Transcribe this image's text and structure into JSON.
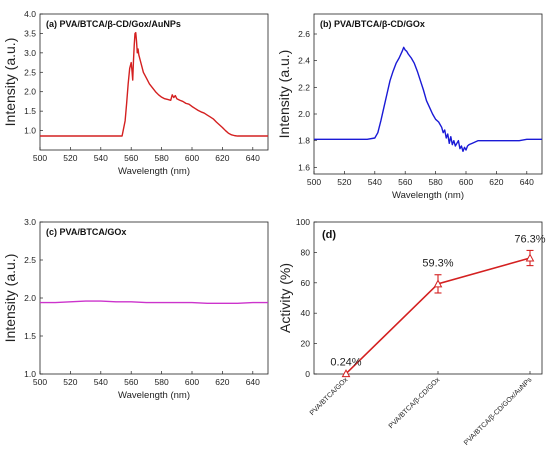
{
  "chart_data": [
    {
      "type": "line",
      "title": "(a) PVA/BTCA/β-CD/Gox/AuNPs",
      "xlabel": "Wavelength (nm)",
      "ylabel": "Intensity (a.u.)",
      "xlim": [
        500,
        650
      ],
      "ylim": [
        0.5,
        4.0
      ],
      "xticks": [
        "500",
        "520",
        "540",
        "560",
        "580",
        "600",
        "620",
        "640"
      ],
      "yticks": [
        "1.0",
        "1.5",
        "2.0",
        "2.5",
        "3.0",
        "3.5",
        "4.0"
      ],
      "color": "#d42020",
      "series": [
        {
          "x": [
            500,
            505,
            510,
            515,
            520,
            525,
            530,
            535,
            540,
            545,
            550,
            552,
            554,
            556,
            557,
            558,
            559,
            560,
            560.5,
            561,
            561.5,
            562,
            562.5,
            563,
            563.5,
            564,
            564.5,
            565,
            566,
            567,
            568,
            570,
            572,
            574,
            576,
            578,
            580,
            582,
            584,
            586,
            587,
            588,
            589,
            590,
            592,
            594,
            596,
            598,
            600,
            602,
            604,
            606,
            608,
            610,
            612,
            614,
            616,
            618,
            620,
            622,
            624,
            626,
            628,
            630,
            632,
            634,
            636,
            638,
            640,
            642,
            644,
            646,
            648,
            650
          ],
          "y": [
            0.86,
            0.86,
            0.86,
            0.86,
            0.86,
            0.86,
            0.86,
            0.86,
            0.86,
            0.86,
            0.86,
            0.86,
            0.86,
            1.25,
            1.7,
            2.2,
            2.6,
            2.75,
            2.55,
            2.3,
            2.8,
            3.2,
            3.5,
            3.52,
            3.3,
            3.0,
            3.1,
            2.95,
            2.8,
            2.65,
            2.5,
            2.35,
            2.2,
            2.1,
            2.0,
            1.92,
            1.86,
            1.82,
            1.8,
            1.78,
            1.92,
            1.85,
            1.9,
            1.82,
            1.78,
            1.75,
            1.7,
            1.68,
            1.62,
            1.57,
            1.52,
            1.48,
            1.45,
            1.4,
            1.35,
            1.3,
            1.22,
            1.15,
            1.08,
            1.0,
            0.93,
            0.89,
            0.87,
            0.86,
            0.86,
            0.86,
            0.86,
            0.86,
            0.86,
            0.86,
            0.86,
            0.86,
            0.86,
            0.86
          ]
        }
      ]
    },
    {
      "type": "line",
      "title": "(b) PVA/BTCA/β-CD/GOx",
      "xlabel": "Wavelength (nm)",
      "ylabel": "Intensity (a.u.)",
      "xlim": [
        500,
        650
      ],
      "ylim": [
        1.55,
        2.75
      ],
      "xticks": [
        "500",
        "520",
        "540",
        "560",
        "580",
        "600",
        "620",
        "640"
      ],
      "yticks": [
        "1.6",
        "1.8",
        "2.0",
        "2.2",
        "2.4",
        "2.6"
      ],
      "color": "#1a1ad6",
      "series": [
        {
          "x": [
            500,
            505,
            510,
            515,
            520,
            525,
            530,
            535,
            540,
            542,
            544,
            546,
            548,
            550,
            552,
            554,
            556,
            558,
            559,
            560,
            561,
            562,
            564,
            566,
            568,
            570,
            572,
            574,
            576,
            578,
            580,
            582,
            584,
            585,
            586,
            587,
            588,
            589,
            590,
            591,
            592,
            593,
            594,
            595,
            596,
            597,
            598,
            599,
            600,
            601,
            602,
            604,
            606,
            608,
            610,
            615,
            620,
            625,
            630,
            635,
            640,
            645,
            650
          ],
          "y": [
            1.81,
            1.81,
            1.81,
            1.81,
            1.81,
            1.81,
            1.81,
            1.81,
            1.82,
            1.86,
            1.95,
            2.05,
            2.15,
            2.25,
            2.32,
            2.38,
            2.42,
            2.47,
            2.5,
            2.48,
            2.47,
            2.45,
            2.42,
            2.38,
            2.32,
            2.25,
            2.18,
            2.1,
            2.05,
            2.0,
            1.96,
            1.94,
            1.9,
            1.86,
            1.88,
            1.82,
            1.85,
            1.78,
            1.83,
            1.77,
            1.8,
            1.76,
            1.78,
            1.8,
            1.74,
            1.76,
            1.72,
            1.75,
            1.73,
            1.76,
            1.77,
            1.78,
            1.79,
            1.8,
            1.8,
            1.8,
            1.8,
            1.8,
            1.8,
            1.8,
            1.81,
            1.81,
            1.81
          ]
        }
      ]
    },
    {
      "type": "line",
      "title": "(c) PVA/BTCA/GOx",
      "xlabel": "Wavelength (nm)",
      "ylabel": "Intensity (a.u.)",
      "xlim": [
        500,
        650
      ],
      "ylim": [
        1.0,
        3.0
      ],
      "xticks": [
        "500",
        "520",
        "540",
        "560",
        "580",
        "600",
        "620",
        "640"
      ],
      "yticks": [
        "1.0",
        "1.5",
        "2.0",
        "2.5",
        "3.0"
      ],
      "color": "#cc33cc",
      "series": [
        {
          "x": [
            500,
            510,
            520,
            530,
            540,
            550,
            560,
            570,
            580,
            590,
            600,
            610,
            620,
            630,
            640,
            650
          ],
          "y": [
            1.94,
            1.94,
            1.95,
            1.96,
            1.96,
            1.95,
            1.95,
            1.94,
            1.94,
            1.94,
            1.94,
            1.93,
            1.93,
            1.93,
            1.94,
            1.94
          ]
        }
      ]
    },
    {
      "type": "line",
      "title": "(d)",
      "ylabel": "Activity (%)",
      "ylim": [
        0,
        100
      ],
      "yticks": [
        "0",
        "20",
        "40",
        "60",
        "80",
        "100"
      ],
      "categories": [
        "PVA/BTCA/GOx",
        "PVA/BTCA/β-CD/GOx",
        "PVA/BTCA/β-CD/GOx/AuNPs"
      ],
      "values": [
        0.24,
        59.3,
        76.3
      ],
      "errors": [
        0.5,
        6,
        5
      ],
      "data_labels": [
        "0.24%",
        "59.3%",
        "76.3%"
      ],
      "color": "#d42020"
    }
  ]
}
